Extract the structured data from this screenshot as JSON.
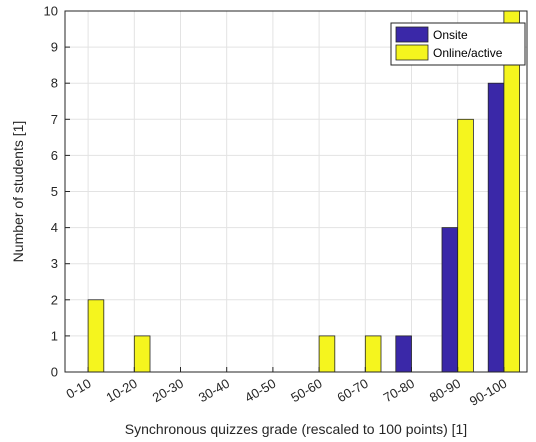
{
  "chart_data": {
    "type": "bar",
    "title": "",
    "xlabel": "Synchronous quizzes grade (rescaled to 100 points) [1]",
    "ylabel": "Number of students [1]",
    "categories": [
      "0-10",
      "10-20",
      "20-30",
      "30-40",
      "40-50",
      "50-60",
      "60-70",
      "70-80",
      "80-90",
      "90-100"
    ],
    "series": [
      {
        "name": "Onsite",
        "color": "#3a28a8",
        "values": [
          0,
          0,
          0,
          0,
          0,
          0,
          0,
          1,
          4,
          8
        ]
      },
      {
        "name": "Online/active",
        "color": "#f5f51e",
        "values": [
          2,
          1,
          0,
          0,
          0,
          1,
          1,
          0,
          7,
          10
        ]
      }
    ],
    "ylim": [
      0,
      10
    ],
    "yticks": [
      0,
      1,
      2,
      3,
      4,
      5,
      6,
      7,
      8,
      9,
      10
    ],
    "grid": true,
    "legend_position": "top-right"
  }
}
